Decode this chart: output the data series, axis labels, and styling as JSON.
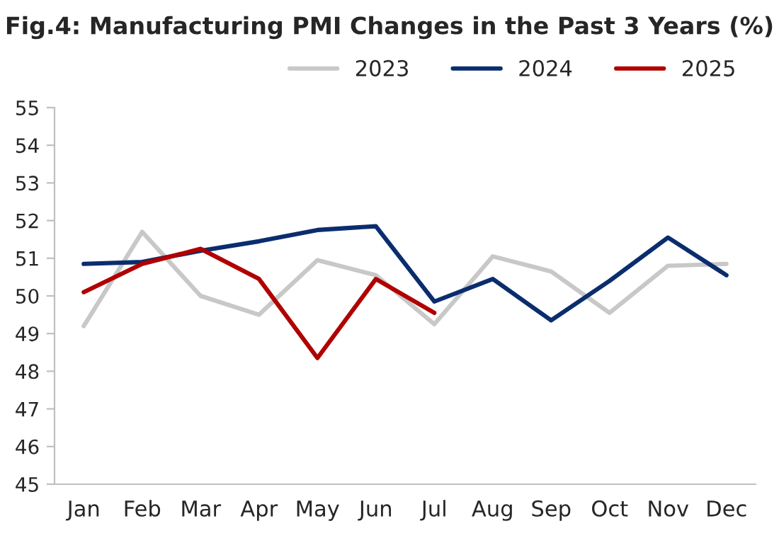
{
  "chart_data": {
    "type": "line",
    "title": "Fig.4: Manufacturing PMI Changes in the Past 3 Years (%)",
    "categories": [
      "Jan",
      "Feb",
      "Mar",
      "Apr",
      "May",
      "Jun",
      "Jul",
      "Aug",
      "Sep",
      "Oct",
      "Nov",
      "Dec"
    ],
    "series": [
      {
        "name": "2023",
        "color": "#c8c8c8",
        "values": [
          49.2,
          51.7,
          50.0,
          49.5,
          50.95,
          50.55,
          49.25,
          51.05,
          50.65,
          49.55,
          50.8,
          50.85
        ]
      },
      {
        "name": "2024",
        "color": "#0a2d6e",
        "values": [
          50.85,
          50.9,
          51.2,
          51.45,
          51.75,
          51.85,
          49.85,
          50.45,
          49.35,
          50.4,
          51.55,
          50.55
        ]
      },
      {
        "name": "2025",
        "color": "#b00000",
        "values": [
          50.1,
          50.85,
          51.25,
          50.45,
          48.35,
          50.45,
          49.55,
          null,
          null,
          null,
          null,
          null
        ]
      }
    ],
    "ylim": [
      45,
      55
    ],
    "yticks": [
      45,
      46,
      47,
      48,
      49,
      50,
      51,
      52,
      53,
      54,
      55
    ],
    "grid": false,
    "legend": "top right",
    "marker": "none",
    "line_style": "solid"
  }
}
